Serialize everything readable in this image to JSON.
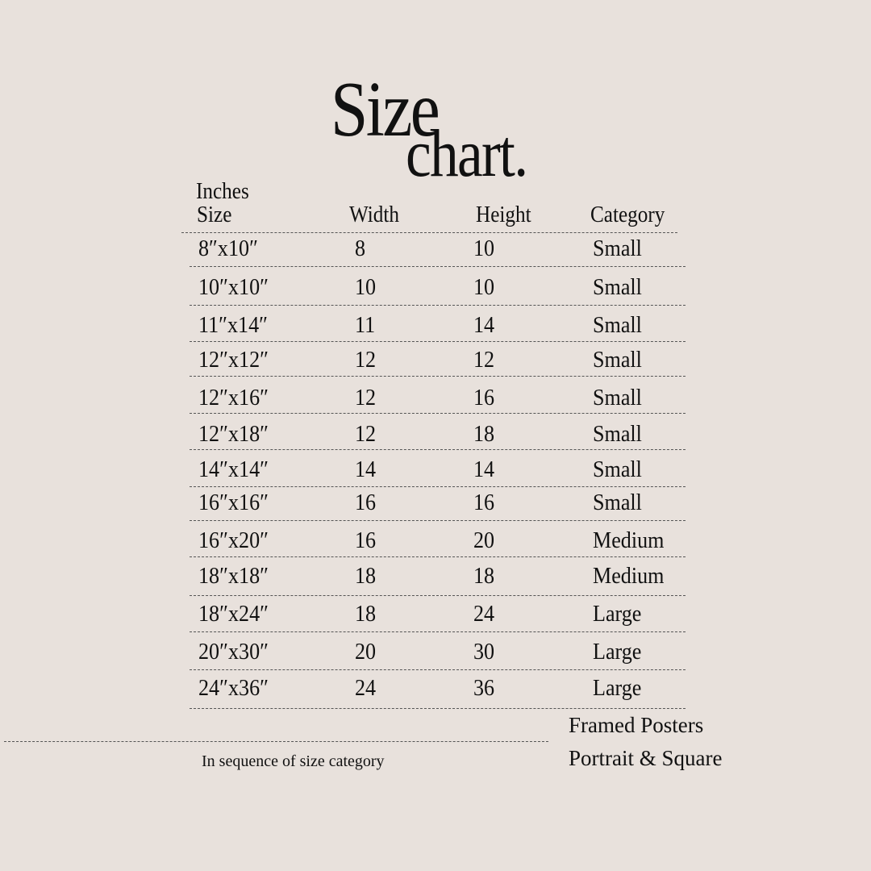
{
  "title": {
    "line1": "Size",
    "line2": "chart."
  },
  "table": {
    "unit_label": "Inches",
    "headers": [
      "Size",
      "Width",
      "Height",
      "Category"
    ],
    "rows": [
      [
        "8″x10″",
        "8",
        "10",
        "Small"
      ],
      [
        "10″x10″",
        "10",
        "10",
        "Small"
      ],
      [
        "11″x14″",
        "11",
        "14",
        "Small"
      ],
      [
        "12″x12″",
        "12",
        "12",
        "Small"
      ],
      [
        "12″x16″",
        "12",
        "16",
        "Small"
      ],
      [
        "12″x18″",
        "12",
        "18",
        "Small"
      ],
      [
        "14″x14″",
        "14",
        "14",
        "Small"
      ],
      [
        "16″x16″",
        "16",
        "16",
        "Small"
      ],
      [
        "16″x20″",
        "16",
        "20",
        "Medium"
      ],
      [
        "18″x18″",
        "18",
        "18",
        "Medium"
      ],
      [
        "18″x24″",
        "18",
        "24",
        "Large"
      ],
      [
        "20″x30″",
        "20",
        "30",
        "Large"
      ],
      [
        "24″x36″",
        "24",
        "36",
        "Large"
      ]
    ]
  },
  "footer": {
    "note": "In sequence of size category",
    "product_line1": "Framed Posters",
    "product_line2": "Portrait & Square"
  }
}
